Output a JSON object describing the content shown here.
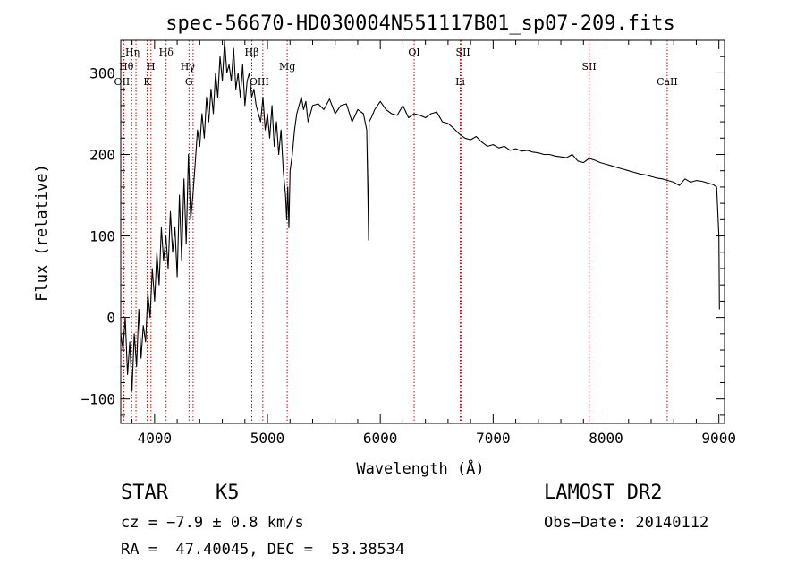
{
  "chart_data": {
    "type": "line",
    "title": "spec-56670-HD030004N551117B01_sp07-209.fits",
    "xlabel": "Wavelength (Å)",
    "ylabel": "Flux (relative)",
    "xlim": [
      3700,
      9050
    ],
    "ylim": [
      -130,
      340
    ],
    "xticks": [
      "4000",
      "5000",
      "6000",
      "7000",
      "8000",
      "9000"
    ],
    "yticks": [
      "-100",
      "0",
      "100",
      "200",
      "300"
    ],
    "grid": false,
    "series": [
      {
        "x": [
          3700,
          3720,
          3740,
          3760,
          3780,
          3800,
          3820,
          3840,
          3860,
          3880,
          3900,
          3920,
          3940,
          3960,
          3980,
          4000,
          4020,
          4040,
          4060,
          4080,
          4100,
          4120,
          4140,
          4160,
          4180,
          4200,
          4220,
          4240,
          4260,
          4280,
          4300,
          4320,
          4340,
          4360,
          4380,
          4400,
          4420,
          4440,
          4460,
          4480,
          4500,
          4520,
          4540,
          4560,
          4580,
          4600,
          4620,
          4640,
          4660,
          4680,
          4700,
          4720,
          4740,
          4760,
          4780,
          4800,
          4820,
          4840,
          4860,
          4880,
          4900,
          4920,
          4940,
          4960,
          4980,
          5000,
          5020,
          5040,
          5060,
          5080,
          5100,
          5120,
          5140,
          5160,
          5170,
          5180,
          5190,
          5200,
          5220,
          5240,
          5260,
          5280,
          5300,
          5320,
          5340,
          5360,
          5380,
          5400,
          5450,
          5500,
          5550,
          5600,
          5650,
          5700,
          5750,
          5800,
          5850,
          5880,
          5890,
          5896,
          5900,
          5920,
          5950,
          6000,
          6050,
          6100,
          6150,
          6200,
          6250,
          6300,
          6350,
          6400,
          6450,
          6500,
          6550,
          6600,
          6650,
          6700,
          6750,
          6800,
          6850,
          6900,
          6950,
          7000,
          7050,
          7100,
          7150,
          7200,
          7250,
          7300,
          7350,
          7400,
          7450,
          7500,
          7550,
          7600,
          7650,
          7700,
          7750,
          7800,
          7850,
          7900,
          7950,
          8000,
          8050,
          8100,
          8150,
          8200,
          8250,
          8300,
          8350,
          8400,
          8450,
          8500,
          8550,
          8600,
          8650,
          8700,
          8750,
          8800,
          8850,
          8900,
          8950,
          8980,
          9000,
          9005
        ],
        "y": [
          -20,
          -40,
          0,
          -70,
          -30,
          -90,
          -20,
          -60,
          10,
          -50,
          -10,
          -30,
          30,
          0,
          60,
          20,
          80,
          40,
          110,
          70,
          100,
          60,
          130,
          80,
          110,
          50,
          150,
          70,
          170,
          90,
          200,
          120,
          150,
          190,
          230,
          210,
          250,
          220,
          270,
          240,
          280,
          250,
          300,
          270,
          320,
          290,
          340,
          300,
          310,
          290,
          330,
          280,
          300,
          270,
          310,
          260,
          290,
          300,
          270,
          280,
          260,
          250,
          240,
          270,
          230,
          250,
          220,
          260,
          210,
          240,
          200,
          230,
          180,
          150,
          120,
          160,
          110,
          180,
          200,
          230,
          250,
          260,
          270,
          255,
          265,
          240,
          250,
          260,
          262,
          255,
          268,
          250,
          260,
          262,
          240,
          255,
          250,
          230,
          150,
          95,
          240,
          245,
          255,
          265,
          255,
          250,
          248,
          260,
          245,
          250,
          248,
          245,
          250,
          252,
          240,
          238,
          232,
          225,
          220,
          218,
          222,
          215,
          210,
          212,
          208,
          210,
          205,
          207,
          204,
          205,
          203,
          202,
          200,
          200,
          198,
          197,
          196,
          200,
          192,
          190,
          195,
          193,
          190,
          188,
          186,
          184,
          182,
          180,
          178,
          176,
          175,
          173,
          171,
          170,
          168,
          166,
          162,
          170,
          166,
          168,
          167,
          165,
          163,
          160,
          100,
          10
        ]
      }
    ],
    "lines": [
      {
        "label": "Hη",
        "x": 3835,
        "row": 1,
        "dx": -4
      },
      {
        "label": "Hθ",
        "x": 3797,
        "row": 2,
        "dx": -6
      },
      {
        "label": "OII",
        "x": 3727,
        "row": 3,
        "dx": -2
      },
      {
        "label": "H",
        "x": 3968,
        "row": 2,
        "dx": 0
      },
      {
        "label": "K",
        "x": 3934,
        "row": 3,
        "dx": 0
      },
      {
        "label": "Hδ",
        "x": 4102,
        "row": 1,
        "dx": 0
      },
      {
        "label": "Hγ",
        "x": 4341,
        "row": 2,
        "dx": -6
      },
      {
        "label": "G",
        "x": 4305,
        "row": 3,
        "dx": 0
      },
      {
        "label": "Hβ",
        "x": 4861,
        "row": 1,
        "dx": 0
      },
      {
        "label": "OIII",
        "x": 4959,
        "row": 3,
        "dx": -4
      },
      {
        "label": "Mg",
        "x": 5175,
        "row": 2,
        "dx": 0
      },
      {
        "label": "OI",
        "x": 6300,
        "row": 1,
        "dx": 0
      },
      {
        "label": "SII",
        "x": 6717,
        "row": 1,
        "dx": 2
      },
      {
        "label": "Li",
        "x": 6708,
        "row": 3,
        "dx": 0
      },
      {
        "label": "SII",
        "x": 7850,
        "row": 2,
        "dx": 0
      },
      {
        "label": "CaII",
        "x": 8542,
        "row": 3,
        "dx": 0
      }
    ]
  },
  "info": {
    "class": "STAR",
    "subclass": "K5",
    "release": "LAMOST DR2",
    "cz": "cz = −7.9 ± 0.8 km/s",
    "obs_date": "Obs−Date: 20140112",
    "radec": "RA =  47.40045, DEC =  53.38534"
  },
  "colors": {
    "spectrum": "#000000",
    "line_markers": "#cc0000",
    "axes": "#000000",
    "background": "#ffffff"
  }
}
